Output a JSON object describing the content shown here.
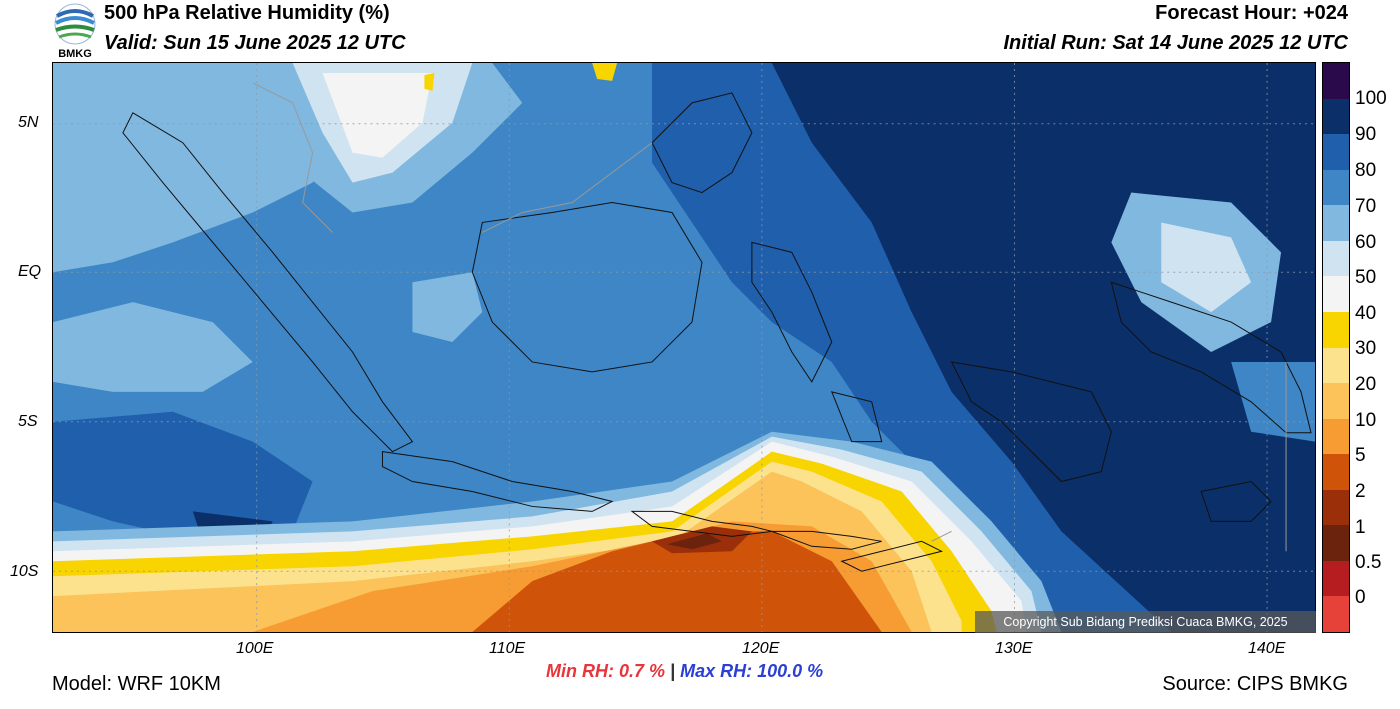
{
  "header": {
    "title": "500 hPa Relative Humidity (%)",
    "valid": "Valid: Sun 15 June 2025 12 UTC",
    "forecast_hour": "Forecast Hour: +024",
    "initial_run": "Initial Run: Sat 14 June 2025 12 UTC",
    "logo_text": "BMKG"
  },
  "map": {
    "lat_labels": [
      "5N",
      "EQ",
      "5S",
      "10S"
    ],
    "lon_labels": [
      "100E",
      "110E",
      "120E",
      "130E",
      "140E"
    ],
    "copyright": "Copyright Sub Bidang Prediksi Cuaca BMKG, 2025"
  },
  "colorbar": {
    "labels": [
      "100",
      "90",
      "80",
      "70",
      "60",
      "50",
      "40",
      "30",
      "20",
      "10",
      "5",
      "2",
      "1",
      "0.5",
      "0"
    ],
    "colors": [
      "#2a0a4a",
      "#0b2f68",
      "#1f5fac",
      "#3e86c5",
      "#80b8df",
      "#cfe3f1",
      "#f4f4f4",
      "#f8d400",
      "#fde28e",
      "#fbc35a",
      "#f79b33",
      "#d0530a",
      "#9a2f0a",
      "#6b230e",
      "#b51d20",
      "#e6423a"
    ]
  },
  "stats": {
    "min_rh": "Min RH:   0.7 %",
    "separator": "|",
    "max_rh": "Max RH: 100.0 %"
  },
  "footer": {
    "model": "Model: WRF 10KM",
    "source": "Source: CIPS BMKG"
  }
}
